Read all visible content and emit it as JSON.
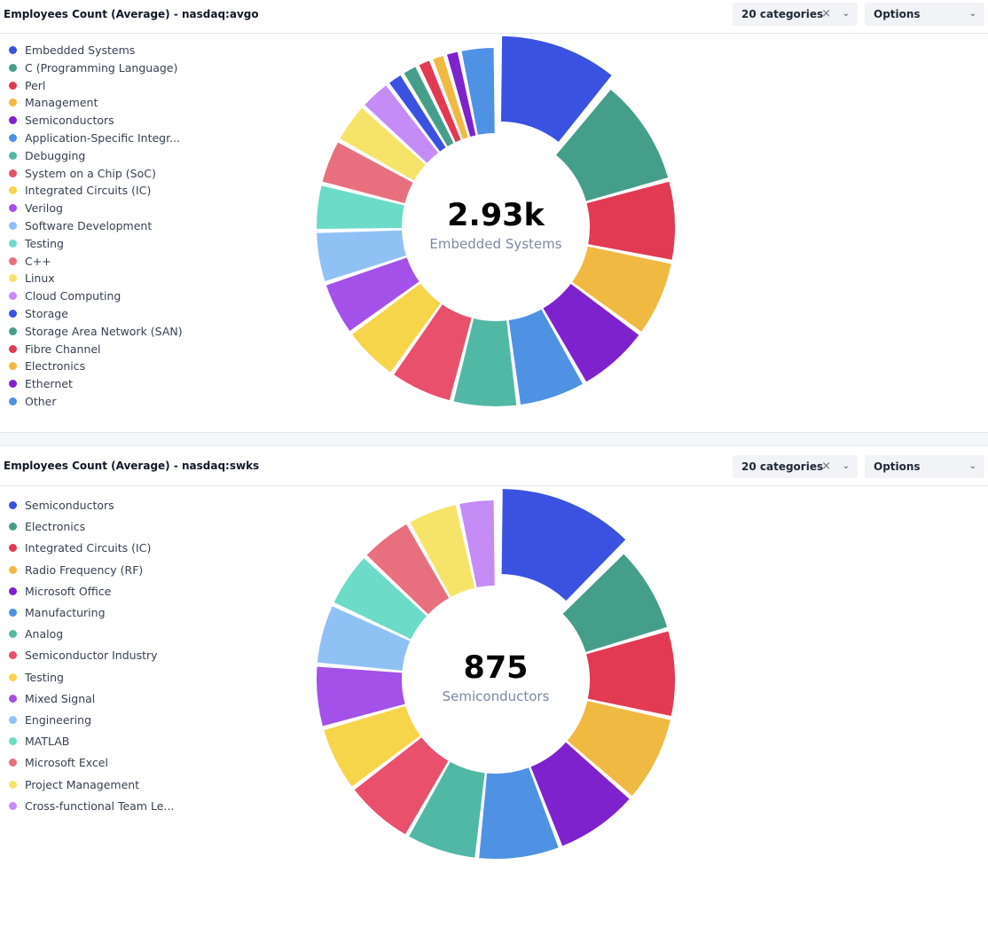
{
  "charts": [
    {
      "title": "Employees Count (Average) - nasdaq:avgo",
      "category_select": "20 categories",
      "clear_icon": "×",
      "options_label": "Options",
      "center_value": "2.93k",
      "center_label": "Embedded Systems",
      "chart_data": {
        "type": "pie",
        "title": "Employees Count (Average) - nasdaq:avgo",
        "categories": [
          "Embedded Systems",
          "C (Programming Language)",
          "Perl",
          "Management",
          "Semiconductors",
          "Application-Specific Integr...",
          "Debugging",
          "System on a Chip (SoC)",
          "Integrated Circuits (IC)",
          "Verilog",
          "Software Development",
          "Testing",
          "C++",
          "Linux",
          "Cloud Computing",
          "Storage",
          "Storage Area Network (SAN)",
          "Fibre Channel",
          "Electronics",
          "Ethernet",
          "Other"
        ],
        "values": [
          2930,
          2640,
          1980,
          1880,
          1790,
          1670,
          1610,
          1570,
          1390,
          1330,
          1270,
          1140,
          1110,
          1000,
          790,
          420,
          410,
          360,
          350,
          360,
          870
        ],
        "colors": [
          "#3b52e0",
          "#459e8a",
          "#e23a53",
          "#f0b942",
          "#7e22ce",
          "#4f91e3",
          "#52b8a6",
          "#e8506c",
          "#f6d54a",
          "#a351e8",
          "#90c1f5",
          "#6cdbc8",
          "#e8707e",
          "#f6e46a",
          "#c58cf5",
          "#3b52e0",
          "#459e8a",
          "#e23a53",
          "#f0b942",
          "#7e22ce",
          "#4f91e3"
        ],
        "highlighted": "Embedded Systems",
        "legend": "left"
      }
    },
    {
      "title": "Employees Count (Average) - nasdaq:swks",
      "category_select": "20 categories",
      "clear_icon": "×",
      "options_label": "Options",
      "center_value": "875",
      "center_label": "Semiconductors",
      "chart_data": {
        "type": "pie",
        "title": "Employees Count (Average) - nasdaq:swks",
        "categories": [
          "Semiconductors",
          "Electronics",
          "Integrated Circuits (IC)",
          "Radio Frequency (RF)",
          "Microsoft Office",
          "Manufacturing",
          "Analog",
          "Semiconductor Industry",
          "Testing",
          "Mixed Signal",
          "Engineering",
          "MATLAB",
          "Microsoft Excel",
          "Project Management",
          "Cross-functional Team Le..."
        ],
        "values": [
          875,
          560,
          560,
          560,
          540,
          530,
          460,
          450,
          420,
          400,
          390,
          360,
          340,
          330,
          240
        ],
        "colors": [
          "#3b52e0",
          "#459e8a",
          "#e23a53",
          "#f0b942",
          "#7e22ce",
          "#4f91e3",
          "#52b8a6",
          "#e8506c",
          "#f6d54a",
          "#a351e8",
          "#90c1f5",
          "#6cdbc8",
          "#e8707e",
          "#f6e46a",
          "#c58cf5"
        ],
        "highlighted": "Semiconductors",
        "legend": "left"
      }
    }
  ]
}
